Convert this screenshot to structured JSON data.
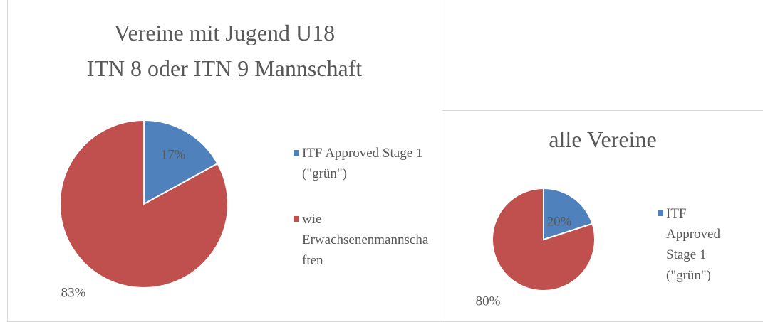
{
  "chart_data": [
    {
      "type": "pie",
      "title": [
        "Vereine mit Jugend U18",
        "ITN 8 oder ITN 9 Mannschaft"
      ],
      "categories": [
        "ITF Approved Stage 1 (\"grün\")",
        "wie Erwachsenenmannschaften"
      ],
      "values": [
        17,
        83
      ],
      "value_labels": [
        "17%",
        "83%"
      ],
      "colors": [
        "#4f81bd",
        "#c0504d"
      ],
      "legend": "right"
    },
    {
      "type": "pie",
      "title": [
        "alle Vereine"
      ],
      "categories": [
        "ITF Approved Stage 1 (\"grün\")",
        null
      ],
      "values": [
        20,
        80
      ],
      "value_labels": [
        "20%",
        "80%"
      ],
      "colors": [
        "#4f81bd",
        "#c0504d"
      ],
      "legend": "right"
    }
  ]
}
